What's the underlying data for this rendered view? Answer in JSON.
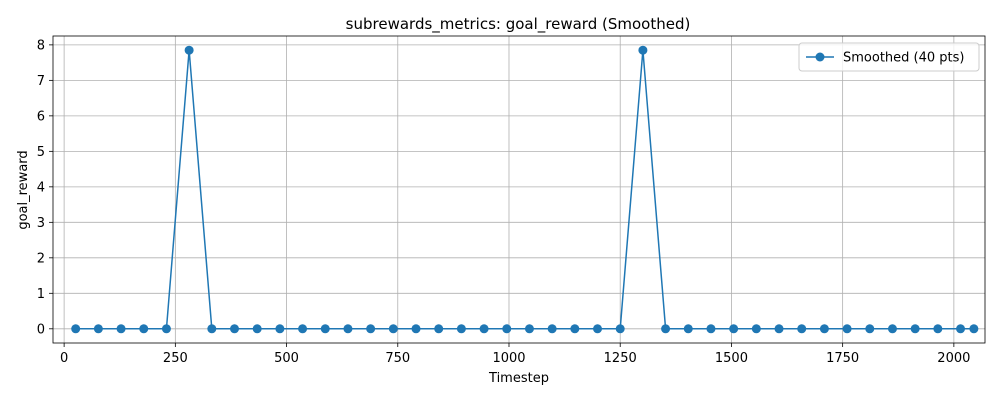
{
  "chart_data": {
    "type": "line",
    "title": "subrewards_metrics: goal_reward (Smoothed)",
    "xlabel": "Timestep",
    "ylabel": "goal_reward",
    "xlim": [
      -25,
      2070
    ],
    "ylim": [
      -0.4,
      8.25
    ],
    "xticks": [
      0,
      250,
      500,
      750,
      1000,
      1250,
      1500,
      1750,
      2000
    ],
    "yticks": [
      0,
      1,
      2,
      3,
      4,
      5,
      6,
      7,
      8
    ],
    "grid": true,
    "legend_position": "top-right",
    "color": "#1f77b4",
    "series": [
      {
        "name": "Smoothed (40 pts)",
        "x": [
          26,
          77,
          128,
          179,
          230,
          281,
          332,
          383,
          434,
          485,
          536,
          587,
          638,
          689,
          740,
          791,
          842,
          893,
          944,
          995,
          1046,
          1097,
          1148,
          1199,
          1250,
          1301,
          1352,
          1403,
          1454,
          1505,
          1556,
          1607,
          1658,
          1709,
          1760,
          1811,
          1862,
          1913,
          1964,
          2015,
          2045
        ],
        "y": [
          0,
          0,
          0,
          0,
          0,
          7.85,
          0,
          0,
          0,
          0,
          0,
          0,
          0,
          0,
          0,
          0,
          0,
          0,
          0,
          0,
          0,
          0,
          0,
          0,
          0,
          7.85,
          0,
          0,
          0,
          0,
          0,
          0,
          0,
          0,
          0,
          0,
          0,
          0,
          0,
          0,
          0
        ]
      }
    ]
  }
}
